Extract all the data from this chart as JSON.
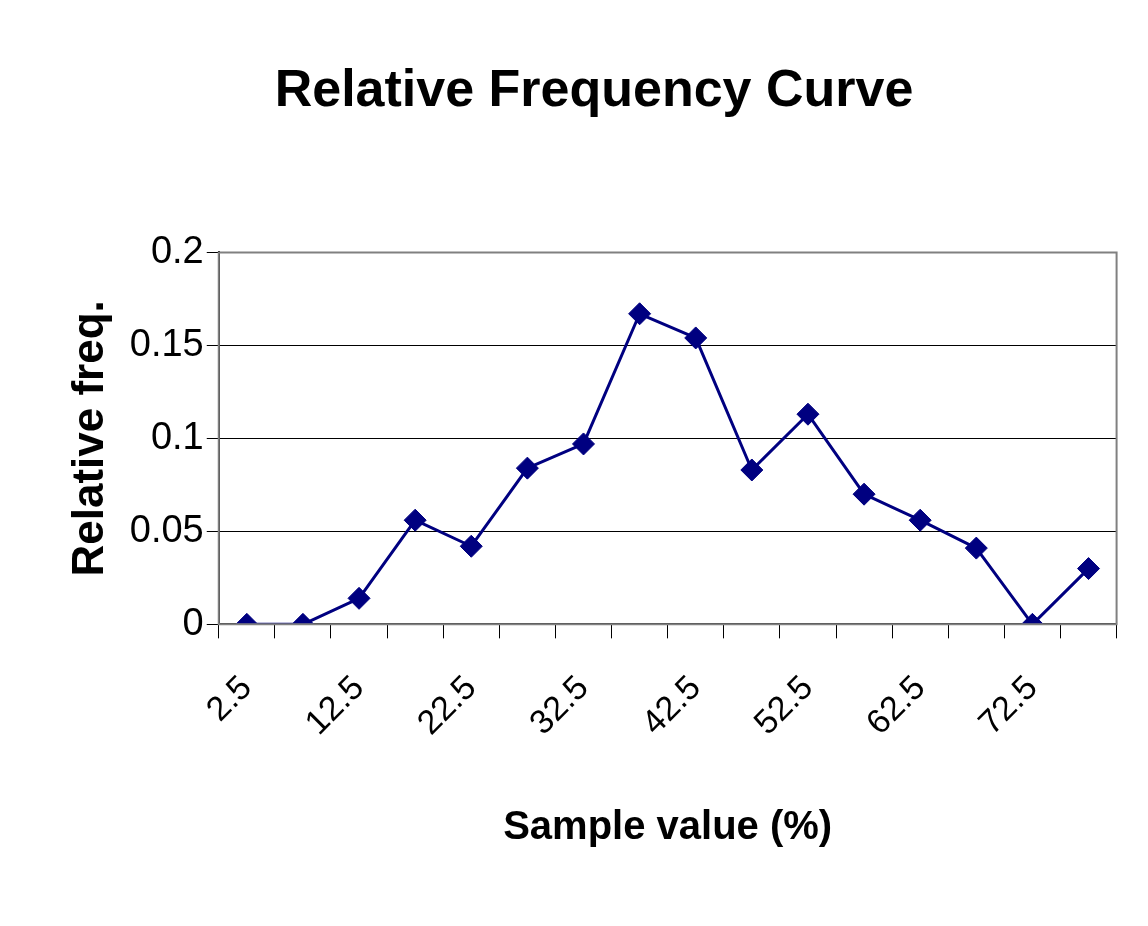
{
  "chart_data": {
    "type": "line",
    "title": "Relative Frequency Curve",
    "xlabel": "Sample value (%)",
    "ylabel": "Relative freq.",
    "categories": [
      "2.5",
      null,
      "12.5",
      null,
      "22.5",
      null,
      "32.5",
      null,
      "42.5",
      null,
      "52.5",
      null,
      "62.5",
      null,
      "72.5",
      null
    ],
    "values": [
      0,
      0,
      0.014,
      0.056,
      0.042,
      0.084,
      0.097,
      0.167,
      0.154,
      0.083,
      0.113,
      0.07,
      0.056,
      0.041,
      0,
      0.03
    ],
    "color": "#000080",
    "marker": "diamond",
    "line_style": "solid",
    "ylim": [
      0,
      0.2
    ],
    "yticks": [
      0,
      0.05,
      0.1,
      0.15,
      0.2
    ],
    "grid": "y"
  }
}
